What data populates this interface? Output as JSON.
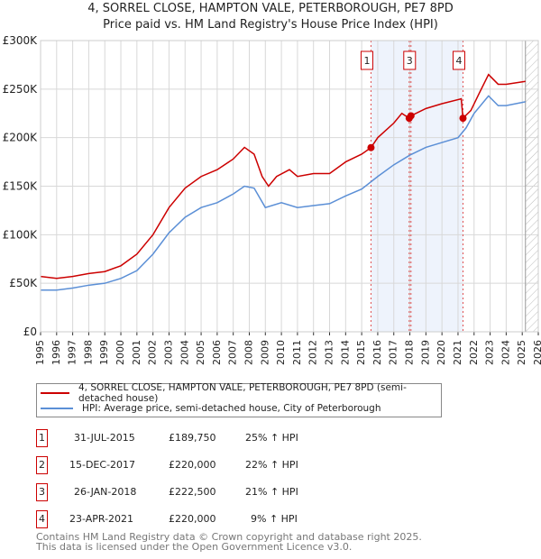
{
  "chart_data": {
    "type": "line",
    "title": "4, SORREL CLOSE, HAMPTON VALE, PETERBOROUGH, PE7 8PD",
    "subtitle": "Price paid vs. HM Land Registry's House Price Index (HPI)",
    "xlim": [
      1995,
      2026
    ],
    "ylim": [
      0,
      300000
    ],
    "x_ticks": [
      "1995",
      "1996",
      "1997",
      "1998",
      "1999",
      "2000",
      "2001",
      "2002",
      "2003",
      "2004",
      "2005",
      "2006",
      "2007",
      "2008",
      "2009",
      "2010",
      "2011",
      "2012",
      "2013",
      "2014",
      "2015",
      "2016",
      "2017",
      "2018",
      "2019",
      "2020",
      "2021",
      "2022",
      "2023",
      "2024",
      "2025",
      "2026"
    ],
    "y_ticks": [
      {
        "v": 0,
        "label": "£0"
      },
      {
        "v": 50000,
        "label": "£50K"
      },
      {
        "v": 100000,
        "label": "£100K"
      },
      {
        "v": 150000,
        "label": "£150K"
      },
      {
        "v": 200000,
        "label": "£200K"
      },
      {
        "v": 250000,
        "label": "£250K"
      },
      {
        "v": 300000,
        "label": "£300K"
      }
    ],
    "grid": true,
    "shaded_range": [
      2015.58,
      2021.31
    ],
    "hatched_from": 2025.2,
    "series": [
      {
        "name": "4, SORREL CLOSE, HAMPTON VALE, PETERBOROUGH, PE7 8PD (semi-detached house)",
        "color": "#cc0000",
        "x": [
          1995,
          1996,
          1997,
          1998,
          1999,
          2000,
          2001,
          2002,
          2003,
          2004,
          2005,
          2006,
          2007,
          2007.7,
          2008.3,
          2008.8,
          2009.2,
          2009.7,
          2010.5,
          2011,
          2012,
          2013,
          2014,
          2015,
          2015.58,
          2016,
          2017,
          2017.5,
          2017.96,
          2018.07,
          2019,
          2020,
          2021.2,
          2021.31,
          2021.8,
          2022.3,
          2022.9,
          2023.5,
          2024,
          2025.2
        ],
        "y": [
          57000,
          55000,
          57000,
          60000,
          62000,
          68000,
          80000,
          100000,
          128000,
          148000,
          160000,
          167000,
          178000,
          190000,
          183000,
          160000,
          150000,
          160000,
          167000,
          160000,
          163000,
          163000,
          175000,
          183000,
          189750,
          200000,
          215000,
          225000,
          220000,
          222500,
          230000,
          235000,
          240000,
          220000,
          228000,
          245000,
          265000,
          255000,
          255000,
          258000
        ]
      },
      {
        "name": "HPI: Average price, semi-detached house, City of Peterborough",
        "color": "#5b8fd6",
        "x": [
          1995,
          1996,
          1997,
          1998,
          1999,
          2000,
          2001,
          2002,
          2003,
          2004,
          2005,
          2006,
          2007,
          2007.7,
          2008.3,
          2009,
          2010,
          2011,
          2012,
          2013,
          2014,
          2015,
          2016,
          2017,
          2018,
          2019,
          2020,
          2021,
          2021.5,
          2022,
          2022.9,
          2023.5,
          2024,
          2025.2
        ],
        "y": [
          43000,
          43000,
          45000,
          48000,
          50000,
          55000,
          63000,
          80000,
          102000,
          118000,
          128000,
          133000,
          142000,
          150000,
          148000,
          128000,
          133000,
          128000,
          130000,
          132000,
          140000,
          147000,
          160000,
          172000,
          182000,
          190000,
          195000,
          200000,
          210000,
          225000,
          243000,
          233000,
          233000,
          237000
        ]
      }
    ],
    "sales": [
      {
        "n": "1",
        "x": 2015.58,
        "y": 189750,
        "date": "31-JUL-2015",
        "price": "£189,750",
        "hpi": "25% ↑ HPI"
      },
      {
        "n": "2",
        "x": 2017.96,
        "y": 220000,
        "date": "15-DEC-2017",
        "price": "£220,000",
        "hpi": "22% ↑ HPI"
      },
      {
        "n": "3",
        "x": 2018.07,
        "y": 222500,
        "date": "26-JAN-2018",
        "price": "£222,500",
        "hpi": "21% ↑ HPI"
      },
      {
        "n": "4",
        "x": 2021.31,
        "y": 220000,
        "date": "23-APR-2021",
        "price": "£220,000",
        "hpi": "9% ↑ HPI"
      }
    ],
    "footer": [
      "Contains HM Land Registry data © Crown copyright and database right 2025.",
      "This data is licensed under the Open Government Licence v3.0."
    ]
  }
}
